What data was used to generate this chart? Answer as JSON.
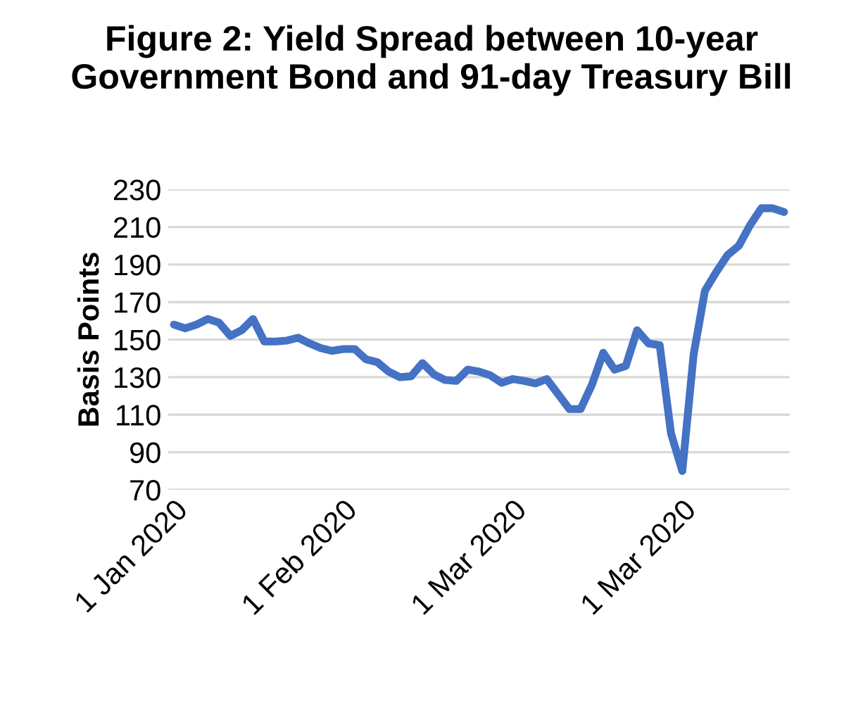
{
  "chart_data": {
    "type": "line",
    "title": "Figure 2: Yield Spread between 10-year\nGovernment Bond and 91-day Treasury Bill",
    "ylabel": "Basis Points",
    "categories": [
      "1 Jan 2020",
      null,
      null,
      null,
      null,
      null,
      null,
      null,
      null,
      null,
      null,
      null,
      null,
      null,
      null,
      "1 Feb 2020",
      null,
      null,
      null,
      null,
      null,
      null,
      null,
      null,
      null,
      null,
      null,
      null,
      null,
      null,
      "1 Mar 2020",
      null,
      null,
      null,
      null,
      null,
      null,
      null,
      null,
      null,
      null,
      null,
      null,
      null,
      null,
      "1 Mar 2020",
      null,
      null,
      null,
      null,
      null,
      null,
      null,
      null,
      null
    ],
    "series": [
      {
        "color": "#4472c4",
        "values": [
          158,
          156,
          158,
          161,
          159,
          152,
          155,
          161,
          149,
          149,
          149.5,
          151,
          148,
          145.5,
          144,
          145,
          145,
          139.5,
          138,
          133,
          130,
          130.5,
          137.5,
          131.5,
          128.5,
          128,
          134,
          133,
          131,
          127,
          129,
          128,
          126.7,
          129,
          121,
          113,
          113,
          126,
          143,
          134,
          136,
          155,
          148,
          147,
          100,
          80,
          142,
          176,
          186,
          195,
          200,
          211,
          220,
          220,
          218
        ]
      }
    ],
    "ylim": [
      70,
      230
    ],
    "yticks": [
      70,
      90,
      110,
      130,
      150,
      170,
      190,
      210,
      230
    ],
    "grid": "y",
    "line_style": "solid",
    "marker": "none"
  }
}
